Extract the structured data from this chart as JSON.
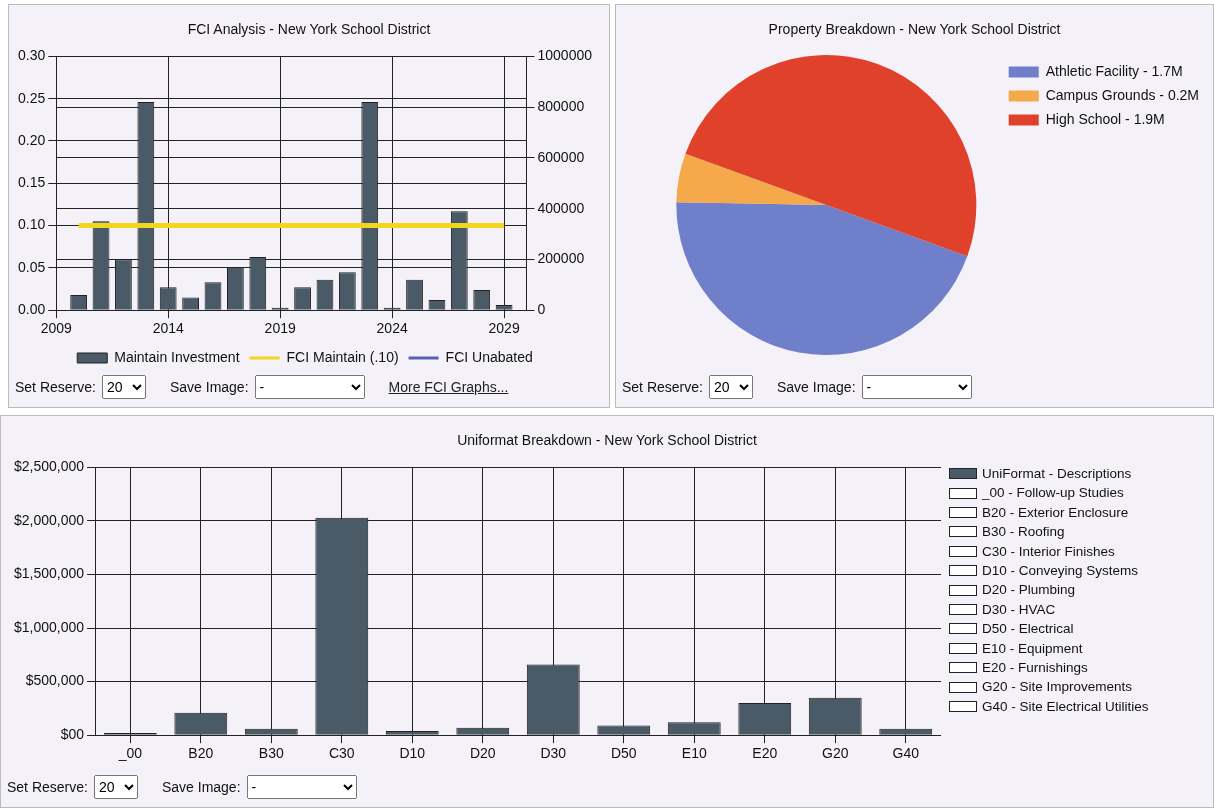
{
  "chart_data": [
    {
      "type": "bar",
      "title": "FCI Analysis - New York School District",
      "xlim": [
        2009,
        2030
      ],
      "xticks": [
        2009,
        2014,
        2019,
        2024,
        2029
      ],
      "ylim": [
        0,
        0.3
      ],
      "yticks": [
        {
          "value": 0,
          "label": "0.00"
        },
        {
          "value": 0.05,
          "label": "0.05"
        },
        {
          "value": 0.1,
          "label": "0.10"
        },
        {
          "value": 0.15,
          "label": "0.15"
        },
        {
          "value": 0.2,
          "label": "0.20"
        },
        {
          "value": 0.25,
          "label": "0.25"
        },
        {
          "value": 0.3,
          "label": "0.30"
        }
      ],
      "y2lim": [
        0,
        1000000
      ],
      "y2ticks": [
        0,
        200000,
        400000,
        600000,
        800000,
        1000000
      ],
      "grid": true,
      "legend": "bottom",
      "series": [
        {
          "name": "Maintain Investment",
          "type": "bar",
          "axis": "y2",
          "color": "#4a5a66",
          "x": [
            2010,
            2011,
            2012,
            2013,
            2014,
            2015,
            2016,
            2017,
            2018,
            2019,
            2020,
            2021,
            2022,
            2023,
            2024,
            2025,
            2026,
            2027,
            2028,
            2029
          ],
          "values": [
            60000,
            350000,
            200000,
            820000,
            90000,
            50000,
            110000,
            170000,
            210000,
            10000,
            90000,
            120000,
            150000,
            820000,
            10000,
            120000,
            40000,
            390000,
            80000,
            20000
          ]
        },
        {
          "name": "FCI Maintain (.10)",
          "type": "line",
          "axis": "y",
          "color": "#f2d61e",
          "x": [
            2010,
            2011,
            2012,
            2013,
            2014,
            2015,
            2016,
            2017,
            2018,
            2019,
            2020,
            2021,
            2022,
            2023,
            2024,
            2025,
            2026,
            2027,
            2028,
            2029
          ],
          "values": [
            0.1,
            0.1,
            0.1,
            0.1,
            0.1,
            0.1,
            0.1,
            0.1,
            0.1,
            0.1,
            0.1,
            0.1,
            0.1,
            0.1,
            0.1,
            0.1,
            0.1,
            0.1,
            0.1,
            0.1
          ]
        },
        {
          "name": "FCI Unabated",
          "type": "line",
          "axis": "y",
          "color": "#5a5fae"
        }
      ],
      "annotations": [
        "Set Reserve:",
        "20",
        "Save Image:",
        "-",
        "More FCI Graphs..."
      ]
    },
    {
      "type": "pie",
      "title": "Property Breakdown - New York School District",
      "categories": [
        "Athletic Facility",
        "Campus Grounds",
        "High School"
      ],
      "values": [
        1.7,
        0.2,
        1.9
      ],
      "value_labels": [
        "1.7M",
        "0.2M",
        "1.9M"
      ],
      "colors": [
        "#6f7fc9",
        "#f5a94a",
        "#e0412a"
      ],
      "legend": "top right",
      "annotations": [
        "Set Reserve:",
        "20",
        "Save Image:",
        "-"
      ]
    },
    {
      "type": "bar",
      "title": "Uniformat Breakdown - New York School District",
      "categories": [
        "_00",
        "B20",
        "B30",
        "C30",
        "D10",
        "D20",
        "D30",
        "D50",
        "E10",
        "E20",
        "G20",
        "G40"
      ],
      "ylim": [
        0,
        2500000
      ],
      "yticks": [
        {
          "value": 0,
          "label": "$00"
        },
        {
          "value": 500000,
          "label": "$500,000"
        },
        {
          "value": 1000000,
          "label": "$1,000,000"
        },
        {
          "value": 1500000,
          "label": "$1,500,000"
        },
        {
          "value": 2000000,
          "label": "$2,000,000"
        },
        {
          "value": 2500000,
          "label": "$2,500,000"
        }
      ],
      "grid": true,
      "legend": "right",
      "series": [
        {
          "name": "UniFormat - Descriptions",
          "color": "#4a5a66",
          "values": [
            20000,
            210000,
            60000,
            2030000,
            40000,
            70000,
            660000,
            90000,
            120000,
            300000,
            350000,
            60000
          ]
        }
      ],
      "annotations": [
        "_00 - Follow-up Studies",
        "B20 - Exterior Enclosure",
        "B30 - Roofing",
        "C30 - Interior Finishes",
        "D10 - Conveying Systems",
        "D20 - Plumbing",
        "D30 - HVAC",
        "D50 - Electrical",
        "E10 - Equipment",
        "E20 - Furnishings",
        "G20 - Site Improvements",
        "G40 - Site Electrical Utilities",
        "Set Reserve:",
        "20",
        "Save Image:",
        "-"
      ]
    }
  ]
}
